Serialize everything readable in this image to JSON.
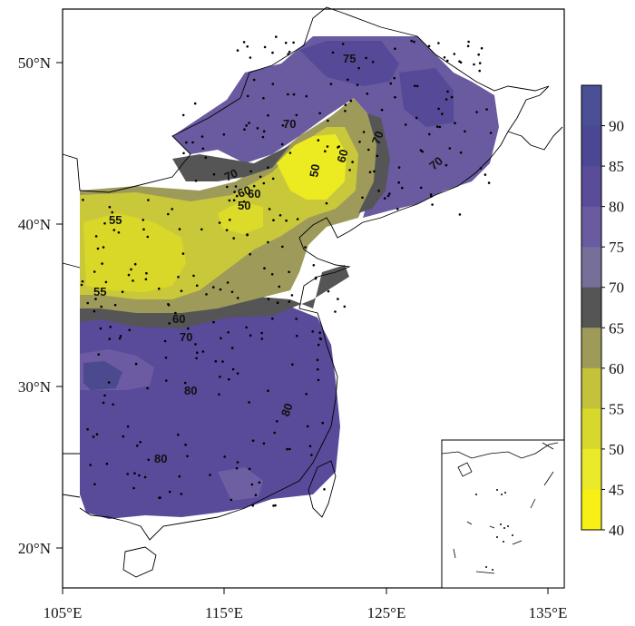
{
  "map": {
    "axes": {
      "x_ticks": [
        "105°E",
        "115°E",
        "125°E",
        "135°E"
      ],
      "y_ticks": [
        "50°N",
        "40°N",
        "30°N",
        "20°N"
      ]
    },
    "colorbar": {
      "levels": [
        "90",
        "85",
        "80",
        "75",
        "70",
        "65",
        "60",
        "55",
        "50",
        "45",
        "40"
      ],
      "colors": [
        "#4a4f96",
        "#4b4795",
        "#5a4c98",
        "#6a5aa0",
        "#756f99",
        "#555555",
        "#9e9b5a",
        "#c4c13a",
        "#d8d82c",
        "#eaea2a",
        "#f8f015"
      ]
    },
    "contour_labels": [
      "75",
      "70",
      "70",
      "70",
      "70",
      "70",
      "60",
      "60",
      "60",
      "60",
      "50",
      "50",
      "55",
      "55",
      "80",
      "80",
      "80"
    ],
    "inset": "South China Sea islands inset"
  }
}
